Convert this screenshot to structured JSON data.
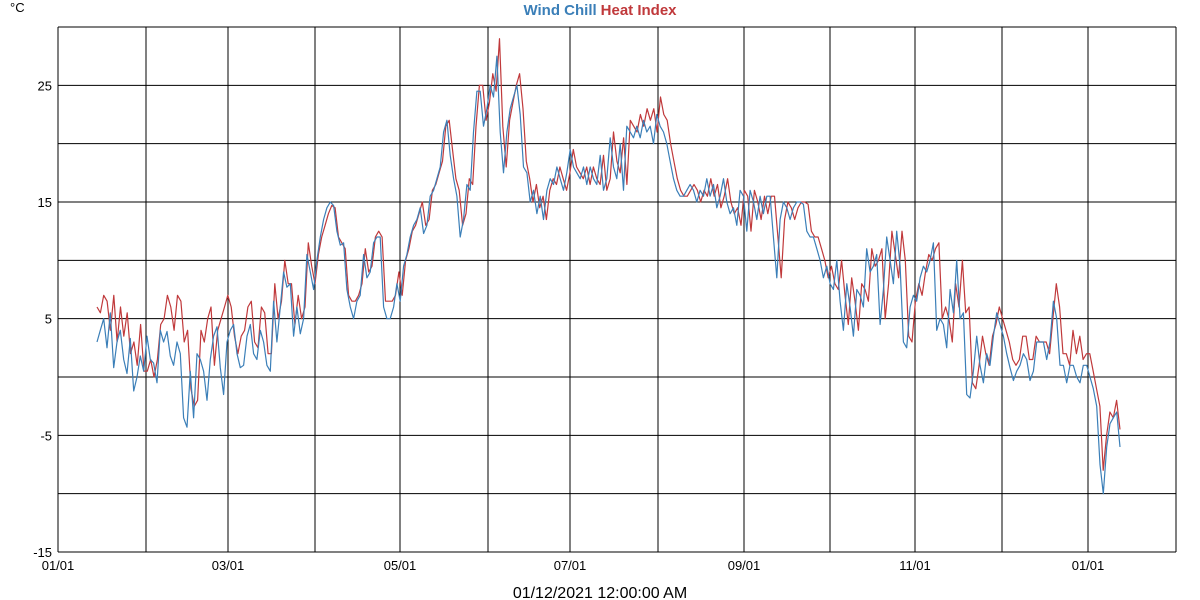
{
  "header": {
    "unit": "°C",
    "title_part1": "Wind Chill",
    "title_part2": "Heat Index"
  },
  "footer": {
    "timestamp": "01/12/2021 12:00:00 AM"
  },
  "chart_data": {
    "type": "line",
    "title": "Wind Chill Heat Index",
    "ylabel": "°C",
    "xlabel": "",
    "ylim": [
      -15,
      30
    ],
    "y_ticks": [
      -15,
      -5,
      5,
      15,
      25
    ],
    "x_ticks": [
      "01/01",
      "03/01",
      "05/01",
      "07/01",
      "09/01",
      "11/01",
      "01/01"
    ],
    "grid": true,
    "series_colors": {
      "wind_chill": "#3b7fb8",
      "heat_index": "#c0393b"
    },
    "series": [
      {
        "name": "Wind Chill",
        "values": [
          3,
          4,
          5,
          2.5,
          5.5,
          0.8,
          3,
          4,
          1.5,
          0.3,
          3.3,
          -1.2,
          0,
          1.8,
          0.5,
          3.5,
          1.5,
          1.2,
          -0.5,
          4,
          3,
          3.9,
          1.8,
          1,
          3,
          2,
          -3.5,
          -4.3,
          0.5,
          -3.5,
          2,
          1.5,
          0.5,
          -2,
          1.5,
          3.5,
          4.3,
          0.8,
          -1.5,
          3,
          4,
          4.5,
          2,
          0.8,
          1,
          3.5,
          4.5,
          2,
          1.5,
          4,
          3,
          1,
          0.5,
          6.5,
          3,
          6,
          9,
          7.7,
          8,
          3.5,
          6,
          3.7,
          5,
          10.5,
          9,
          7.5,
          10,
          12,
          13.5,
          14.5,
          15,
          14.7,
          12.5,
          11.3,
          11.5,
          7.5,
          6,
          5,
          6.5,
          7,
          10.5,
          8.5,
          9,
          11.5,
          12,
          12,
          6,
          5,
          5,
          6,
          8,
          6.5,
          9.5,
          10.5,
          12,
          13,
          13.5,
          14.5,
          12.3,
          13,
          15.5,
          16,
          17,
          18,
          21,
          22,
          19,
          17,
          15.5,
          12,
          13.5,
          16.5,
          16,
          21,
          24.5,
          24.5,
          21.5,
          23,
          25,
          24,
          27.5,
          21,
          17.5,
          21,
          23,
          24,
          25,
          22.5,
          18,
          17.5,
          15,
          16,
          14,
          15.5,
          13.5,
          16,
          17,
          16.5,
          18,
          17,
          16,
          17.5,
          19.5,
          18,
          17.5,
          17,
          18,
          16.5,
          18,
          17,
          16.5,
          19,
          16,
          17,
          20.5,
          18,
          17,
          20,
          16,
          21.5,
          21,
          20.5,
          21.5,
          20.5,
          22,
          21,
          21.5,
          20,
          22.5,
          21.5,
          21,
          20,
          18.5,
          17,
          16,
          15.5,
          15.5,
          16,
          16.5,
          16,
          15,
          16,
          15.5,
          17,
          15.5,
          16.5,
          14.5,
          15.5,
          17,
          15,
          14,
          14.5,
          13,
          16,
          15.5,
          12.5,
          16,
          15,
          13.5,
          15.5,
          14,
          15.5,
          15.5,
          12,
          8.5,
          13.5,
          15,
          14.5,
          13.5,
          14.5,
          15,
          15,
          14.8,
          12.5,
          12,
          12,
          11,
          10,
          8.5,
          9.5,
          8,
          7.5,
          10,
          6.5,
          4,
          8,
          6,
          3.5,
          7.5,
          7,
          6,
          11,
          9,
          9.5,
          10.5,
          4.5,
          7.5,
          12,
          10,
          8,
          12.5,
          9.5,
          3,
          2.5,
          6,
          7,
          6.5,
          8.5,
          9.5,
          9,
          10,
          11.5,
          4,
          5,
          4.5,
          2.5,
          7.5,
          5.5,
          10,
          5,
          5.5,
          -1.5,
          -1.8,
          0.5,
          3.5,
          1,
          -0.5,
          2,
          1,
          3.5,
          5.5,
          4.5,
          3.5,
          2,
          0.8,
          -0.3,
          0.5,
          1,
          2,
          1.5,
          -0.3,
          0.5,
          3,
          3,
          3,
          1.5,
          3,
          6.5,
          5,
          1,
          1,
          -0.5,
          1,
          1,
          0,
          -0.5,
          1,
          1,
          0,
          -1,
          -2.5,
          -7.5,
          -10,
          -6,
          -4,
          -3.5,
          -3,
          -6
        ]
      },
      {
        "name": "Heat Index",
        "values": [
          6,
          5.5,
          7,
          6.5,
          4,
          7,
          3,
          6,
          3.5,
          5.5,
          2,
          3,
          1,
          4.5,
          0.5,
          0.5,
          1.5,
          0,
          1.5,
          4.5,
          5,
          7,
          6,
          4,
          7,
          6.5,
          3,
          4,
          -1,
          -2.5,
          -2,
          4,
          3,
          5,
          6,
          1,
          4,
          5,
          6,
          7,
          6,
          3.5,
          2,
          3.5,
          4,
          6,
          6.5,
          3,
          2.5,
          6,
          5.5,
          2,
          2,
          8,
          5,
          6.5,
          10,
          8,
          8,
          4.5,
          7,
          5,
          6,
          11.5,
          9.5,
          8,
          10.5,
          12,
          13,
          14,
          14.7,
          14.5,
          12,
          11.5,
          11,
          7,
          6.5,
          6.5,
          7,
          8,
          11,
          9,
          9.5,
          12,
          12.5,
          12,
          6.5,
          6.5,
          6.5,
          7,
          9,
          7,
          10,
          11,
          12.5,
          13,
          14,
          15,
          13,
          13.5,
          16,
          16.5,
          17.5,
          18.5,
          21.5,
          22,
          19.5,
          17,
          16,
          13,
          14,
          17,
          16.5,
          21.5,
          25,
          25,
          22,
          23.5,
          26,
          24.5,
          29,
          21.5,
          18,
          22,
          23.5,
          25,
          26,
          23,
          18.5,
          17,
          15,
          16.5,
          14.5,
          15.5,
          13.5,
          16,
          17,
          16.5,
          18,
          17,
          16,
          17.5,
          19.5,
          18,
          17.5,
          17,
          18,
          16.5,
          18,
          17,
          16.5,
          19,
          16,
          17,
          21,
          18.5,
          17.5,
          20.5,
          16.5,
          22,
          21.5,
          21,
          22.5,
          21.5,
          23,
          22,
          23,
          21,
          24,
          22.5,
          22,
          20,
          18.5,
          17,
          16,
          15.5,
          15.5,
          16,
          16.5,
          16,
          15,
          16,
          15.5,
          17,
          15.5,
          16.5,
          14.5,
          15.5,
          17,
          15,
          14,
          14.5,
          13,
          16,
          15.5,
          12.5,
          16,
          15,
          13.5,
          15.5,
          14,
          15.5,
          15.5,
          12,
          8.5,
          13.5,
          15,
          14.5,
          13.5,
          14.5,
          15,
          15,
          14.8,
          12.5,
          12,
          12,
          11,
          10,
          8.5,
          9.5,
          8,
          7.5,
          10,
          7,
          4.5,
          8.5,
          6.5,
          4,
          8,
          7.5,
          6.5,
          11,
          9.5,
          10,
          11,
          5,
          8,
          12.5,
          10.5,
          8.5,
          12.5,
          10,
          3.5,
          3,
          6.5,
          8,
          7,
          9,
          10.5,
          10,
          11,
          11.5,
          5,
          6,
          5,
          3,
          8,
          6,
          10,
          5.5,
          6,
          -0.5,
          -1,
          1,
          3.5,
          2,
          1,
          3.5,
          4.5,
          6,
          5,
          4,
          3,
          1.5,
          1,
          1.5,
          3.5,
          3.5,
          1.5,
          1.5,
          3.5,
          3,
          3,
          3,
          2,
          5,
          8,
          6,
          2,
          2,
          1,
          4,
          2,
          3.5,
          1.5,
          2,
          2,
          0.5,
          -1,
          -2.5,
          -8,
          -5,
          -3,
          -3.5,
          -2,
          -4.5
        ]
      }
    ]
  }
}
